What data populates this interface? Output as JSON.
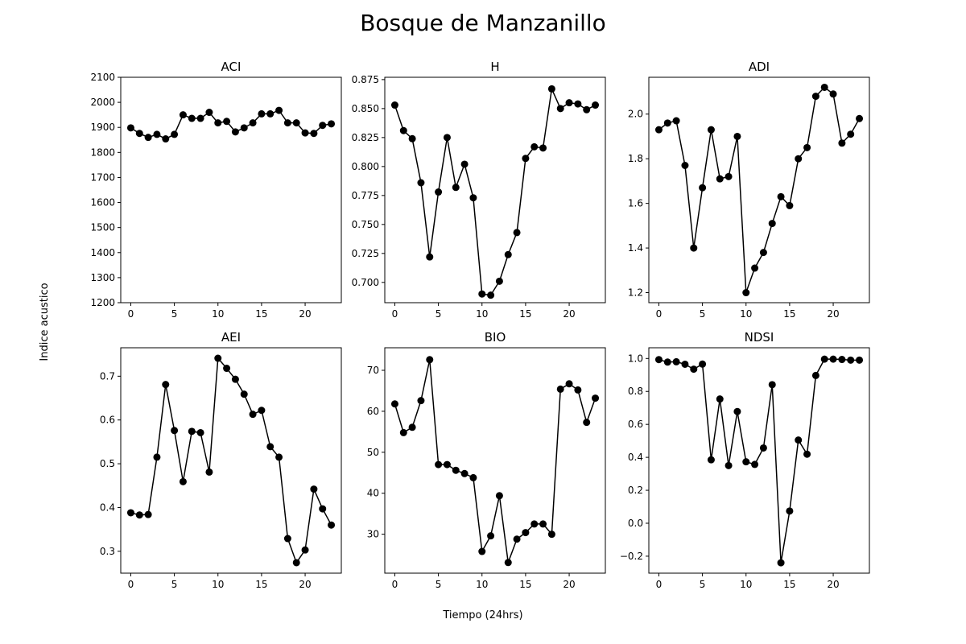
{
  "figure": {
    "title": "Bosque de Manzanillo",
    "xlabel": "Tiempo (24hrs)",
    "ylabel": "Indice acustico"
  },
  "style": {
    "line_color": "#000000",
    "marker": "filled-circle"
  },
  "chart_data": [
    {
      "type": "line",
      "title": "ACI",
      "grid": false,
      "xlim": [
        -1.15,
        24.15
      ],
      "ylim": [
        1200,
        2100
      ],
      "xticks": [
        0,
        5,
        10,
        15,
        20
      ],
      "yticks": [
        1200,
        1300,
        1400,
        1500,
        1600,
        1700,
        1800,
        1900,
        2000,
        2100
      ],
      "ytick_labels": [
        "1200",
        "1300",
        "1400",
        "1500",
        "1600",
        "1700",
        "1800",
        "1900",
        "2000",
        "2100"
      ],
      "x": [
        0,
        1,
        2,
        3,
        4,
        5,
        6,
        7,
        8,
        9,
        10,
        11,
        12,
        13,
        14,
        15,
        16,
        17,
        18,
        19,
        20,
        21,
        22,
        23
      ],
      "values": [
        1898,
        1876,
        1860,
        1872,
        1854,
        1872,
        1950,
        1936,
        1936,
        1960,
        1918,
        1924,
        1882,
        1898,
        1918,
        1954,
        1954,
        1968,
        1918,
        1918,
        1878,
        1876,
        1908,
        1914
      ]
    },
    {
      "type": "line",
      "title": "H",
      "grid": false,
      "xlim": [
        -1.15,
        24.15
      ],
      "ylim": [
        0.6825,
        0.877
      ],
      "xticks": [
        0,
        5,
        10,
        15,
        20
      ],
      "yticks": [
        0.7,
        0.725,
        0.75,
        0.775,
        0.8,
        0.825,
        0.85,
        0.875
      ],
      "ytick_labels": [
        "0.700",
        "0.725",
        "0.750",
        "0.775",
        "0.800",
        "0.825",
        "0.850",
        "0.875"
      ],
      "x": [
        0,
        1,
        2,
        3,
        4,
        5,
        6,
        7,
        8,
        9,
        10,
        11,
        12,
        13,
        14,
        15,
        16,
        17,
        18,
        19,
        20,
        21,
        22,
        23
      ],
      "values": [
        0.853,
        0.831,
        0.824,
        0.786,
        0.722,
        0.778,
        0.825,
        0.782,
        0.802,
        0.773,
        0.69,
        0.689,
        0.701,
        0.724,
        0.743,
        0.807,
        0.817,
        0.816,
        0.867,
        0.85,
        0.855,
        0.854,
        0.849,
        0.853
      ]
    },
    {
      "type": "line",
      "title": "ADI",
      "grid": false,
      "xlim": [
        -1.15,
        24.15
      ],
      "ylim": [
        1.155,
        2.165
      ],
      "xticks": [
        0,
        5,
        10,
        15,
        20
      ],
      "yticks": [
        1.2,
        1.4,
        1.6,
        1.8,
        2.0
      ],
      "ytick_labels": [
        "1.2",
        "1.4",
        "1.6",
        "1.8",
        "2.0"
      ],
      "x": [
        0,
        1,
        2,
        3,
        4,
        5,
        6,
        7,
        8,
        9,
        10,
        11,
        12,
        13,
        14,
        15,
        16,
        17,
        18,
        19,
        20,
        21,
        22,
        23
      ],
      "values": [
        1.93,
        1.96,
        1.97,
        1.77,
        1.4,
        1.67,
        1.93,
        1.71,
        1.72,
        1.9,
        1.2,
        1.31,
        1.38,
        1.51,
        1.63,
        1.59,
        1.8,
        1.85,
        2.08,
        2.12,
        2.09,
        1.87,
        1.91,
        1.98
      ]
    },
    {
      "type": "line",
      "title": "AEI",
      "grid": false,
      "xlim": [
        -1.15,
        24.15
      ],
      "ylim": [
        0.25,
        0.765
      ],
      "xticks": [
        0,
        5,
        10,
        15,
        20
      ],
      "yticks": [
        0.3,
        0.4,
        0.5,
        0.6,
        0.7
      ],
      "ytick_labels": [
        "0.3",
        "0.4",
        "0.5",
        "0.6",
        "0.7"
      ],
      "x": [
        0,
        1,
        2,
        3,
        4,
        5,
        6,
        7,
        8,
        9,
        10,
        11,
        12,
        13,
        14,
        15,
        16,
        17,
        18,
        19,
        20,
        21,
        22,
        23
      ],
      "values": [
        0.388,
        0.383,
        0.384,
        0.515,
        0.681,
        0.576,
        0.459,
        0.574,
        0.571,
        0.481,
        0.741,
        0.718,
        0.693,
        0.659,
        0.613,
        0.622,
        0.539,
        0.515,
        0.329,
        0.274,
        0.303,
        0.442,
        0.397,
        0.36
      ]
    },
    {
      "type": "line",
      "title": "BIO",
      "grid": false,
      "xlim": [
        -1.15,
        24.15
      ],
      "ylim": [
        20.5,
        75.5
      ],
      "xticks": [
        0,
        5,
        10,
        15,
        20
      ],
      "yticks": [
        30,
        40,
        50,
        60,
        70
      ],
      "ytick_labels": [
        "30",
        "40",
        "50",
        "60",
        "70"
      ],
      "x": [
        0,
        1,
        2,
        3,
        4,
        5,
        6,
        7,
        8,
        9,
        10,
        11,
        12,
        13,
        14,
        15,
        16,
        17,
        18,
        19,
        20,
        21,
        22,
        23
      ],
      "values": [
        61.8,
        54.8,
        56.1,
        62.6,
        72.6,
        47.0,
        47.0,
        45.6,
        44.8,
        43.8,
        25.8,
        29.6,
        39.4,
        23.1,
        28.8,
        30.4,
        32.5,
        32.5,
        30.0,
        65.4,
        66.7,
        65.2,
        57.3,
        63.2
      ]
    },
    {
      "type": "line",
      "title": "NDSI",
      "grid": false,
      "xlim": [
        -1.15,
        24.15
      ],
      "ylim": [
        -0.303,
        1.065
      ],
      "xticks": [
        0,
        5,
        10,
        15,
        20
      ],
      "yticks": [
        -0.2,
        0.0,
        0.2,
        0.4,
        0.6,
        0.8,
        1.0
      ],
      "ytick_labels": [
        "−0.2",
        "0.0",
        "0.2",
        "0.4",
        "0.6",
        "0.8",
        "1.0"
      ],
      "x": [
        0,
        1,
        2,
        3,
        4,
        5,
        6,
        7,
        8,
        9,
        10,
        11,
        12,
        13,
        14,
        15,
        16,
        17,
        18,
        19,
        20,
        21,
        22,
        23
      ],
      "values": [
        0.993,
        0.978,
        0.98,
        0.965,
        0.935,
        0.966,
        0.385,
        0.754,
        0.35,
        0.678,
        0.373,
        0.357,
        0.457,
        0.841,
        -0.24,
        0.074,
        0.505,
        0.419,
        0.897,
        0.996,
        0.996,
        0.994,
        0.99,
        0.99
      ]
    }
  ]
}
